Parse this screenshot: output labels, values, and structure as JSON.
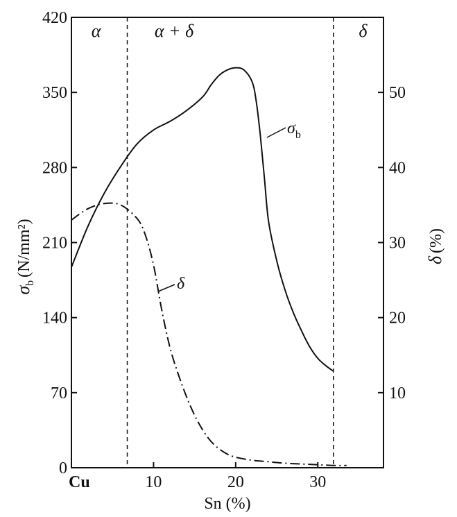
{
  "chart_data": {
    "type": "line",
    "xlabel": "Sn (%)",
    "x_tick_labels": [
      "Cu",
      "10",
      "20",
      "30"
    ],
    "x_ticks": [
      0,
      10,
      20,
      30
    ],
    "xlim": [
      0,
      38
    ],
    "ylabel_left": "σb (N/mm²)",
    "ylabel_left_main": "σ",
    "ylabel_left_sub": "b",
    "ylabel_left_unit": "(N/mm²)",
    "y_left_ticks": [
      0,
      70,
      140,
      210,
      280,
      350,
      420
    ],
    "ylim_left": [
      0,
      420
    ],
    "ylabel_right": "δ (%)",
    "ylabel_right_main": "δ",
    "ylabel_right_unit": "(%)",
    "y_right_ticks": [
      10,
      20,
      30,
      40,
      50
    ],
    "ylim_right": [
      0,
      60
    ],
    "phase_boundaries": [
      6.8,
      31.9
    ],
    "phase_labels": [
      {
        "text": "α",
        "x": 3
      },
      {
        "text": "α + δ",
        "x": 12.5
      },
      {
        "text": "δ",
        "x": 35.5
      }
    ],
    "series": [
      {
        "name": "σb",
        "label_main": "σ",
        "label_sub": "b",
        "axis": "left",
        "style": "solid",
        "points": [
          [
            0,
            187
          ],
          [
            2,
            225
          ],
          [
            4,
            256
          ],
          [
            6,
            281
          ],
          [
            8,
            302
          ],
          [
            10,
            315
          ],
          [
            12,
            323
          ],
          [
            14,
            333
          ],
          [
            16,
            346
          ],
          [
            17,
            357
          ],
          [
            18,
            366
          ],
          [
            19,
            371
          ],
          [
            20,
            373
          ],
          [
            21,
            371
          ],
          [
            22,
            360
          ],
          [
            22.5,
            342
          ],
          [
            23,
            310
          ],
          [
            23.5,
            270
          ],
          [
            24,
            230
          ],
          [
            25,
            193
          ],
          [
            26,
            166
          ],
          [
            27,
            145
          ],
          [
            28,
            128
          ],
          [
            29,
            113
          ],
          [
            30,
            102
          ],
          [
            31,
            95
          ],
          [
            31.9,
            90
          ]
        ]
      },
      {
        "name": "δ",
        "label_main": "δ",
        "axis": "right",
        "style": "dash-dot",
        "points": [
          [
            0,
            33
          ],
          [
            2,
            34.5
          ],
          [
            4,
            35.2
          ],
          [
            6,
            35.0
          ],
          [
            8,
            33.2
          ],
          [
            9,
            31
          ],
          [
            10,
            27
          ],
          [
            11,
            21
          ],
          [
            12,
            16
          ],
          [
            13,
            12.5
          ],
          [
            14,
            9.5
          ],
          [
            15,
            7
          ],
          [
            16,
            5
          ],
          [
            17,
            3.5
          ],
          [
            18,
            2.5
          ],
          [
            19,
            1.8
          ],
          [
            20,
            1.4
          ],
          [
            22,
            1.0
          ],
          [
            24,
            0.8
          ],
          [
            26,
            0.6
          ],
          [
            28,
            0.5
          ],
          [
            30,
            0.4
          ],
          [
            32,
            0.3
          ],
          [
            33.5,
            0.3
          ]
        ]
      }
    ],
    "grid": false
  }
}
